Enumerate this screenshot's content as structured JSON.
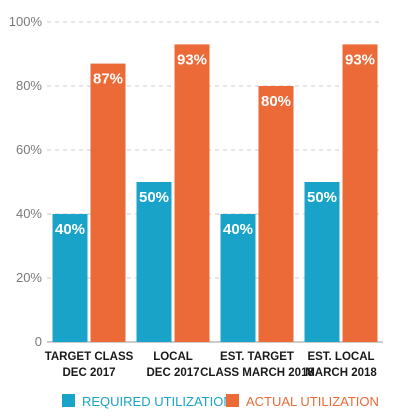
{
  "chart_data": {
    "type": "bar",
    "categories": [
      [
        "TARGET CLASS",
        "DEC 2017"
      ],
      [
        "LOCAL",
        "DEC 2017"
      ],
      [
        "EST. TARGET",
        "CLASS MARCH 2018"
      ],
      [
        "EST. LOCAL",
        "MARCH 2018"
      ]
    ],
    "series": [
      {
        "name": "REQUIRED UTILIZATION",
        "values": [
          40,
          50,
          40,
          50
        ],
        "labels": [
          "40%",
          "50%",
          "40%",
          "50%"
        ],
        "color": "#1aa3c9"
      },
      {
        "name": "ACTUAL UTILIZATION",
        "values": [
          87,
          93,
          80,
          93
        ],
        "labels": [
          "87%",
          "93%",
          "80%",
          "93%"
        ],
        "color": "#ec6a37"
      }
    ],
    "ylim": [
      0,
      100
    ],
    "yticks": [
      0,
      20,
      40,
      60,
      80,
      100
    ],
    "ytick_labels": [
      "0",
      "20%",
      "40%",
      "60%",
      "80%",
      "100%"
    ],
    "grid": true,
    "legend_position": "bottom",
    "title": "",
    "xlabel": "",
    "ylabel": ""
  }
}
